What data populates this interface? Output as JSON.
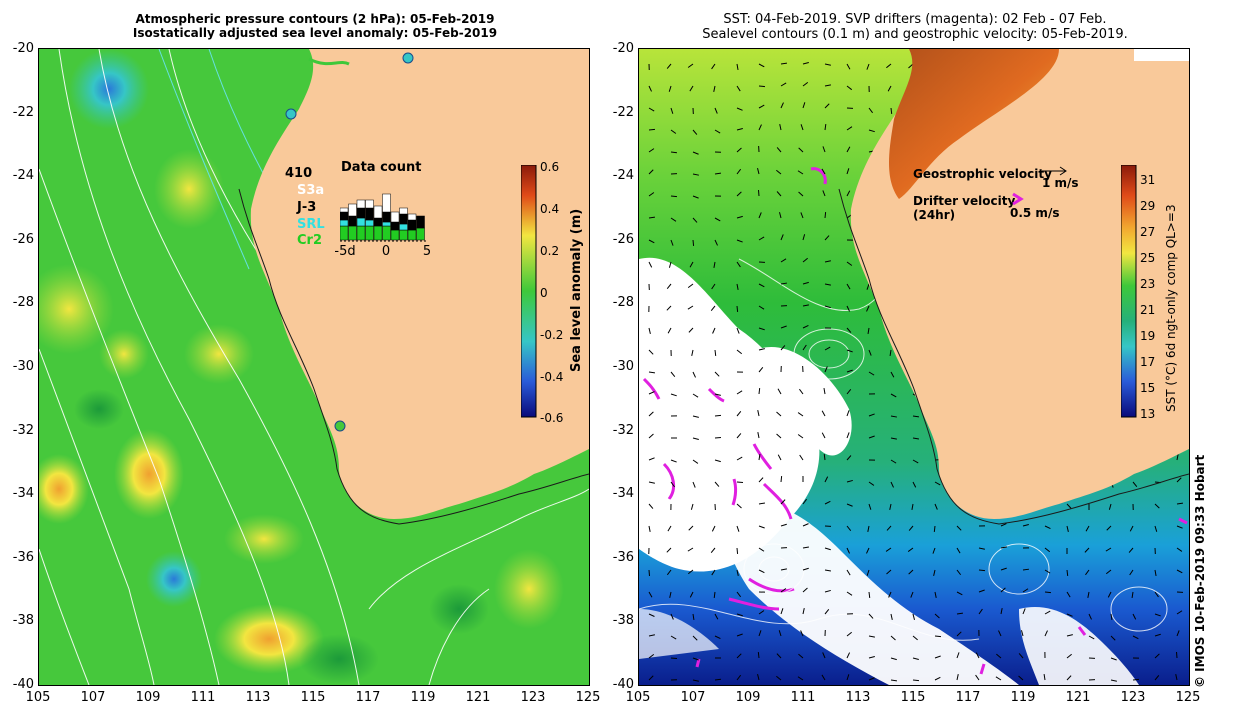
{
  "left_panel": {
    "title_line1": "Atmospheric pressure contours (2 hPa): 05-Feb-2019",
    "title_line2": "Isostatically adjusted sea level anomaly: 05-Feb-2019",
    "colorbar": {
      "label": "Sea level anomaly (m)",
      "ticks": [
        "0.6",
        "0.4",
        "0.2",
        "0",
        "-0.2",
        "-0.4",
        "-0.6"
      ]
    },
    "data_count": {
      "title": "Data count",
      "total": "410",
      "satellites": [
        {
          "name": "S3a",
          "color": "#ffffff"
        },
        {
          "name": "J-3",
          "color": "#000000"
        },
        {
          "name": "SRL",
          "color": "#33e0e0"
        },
        {
          "name": "Cr2",
          "color": "#22cc22"
        }
      ],
      "xticks": [
        "-5d",
        "0",
        "5"
      ]
    }
  },
  "right_panel": {
    "title_line1": "SST: 04-Feb-2019. SVP drifters (magenta): 02 Feb - 07 Feb.",
    "title_line2": "Sealevel contours (0.1 m) and geostrophic velocity: 05-Feb-2019.",
    "legend": {
      "geostrophic_label": "Geostrophic velocity",
      "geostrophic_scale": "1 m/s",
      "drifter_label_1": "Drifter velocity",
      "drifter_label_2": "(24hr)",
      "drifter_scale": "0.5 m/s"
    },
    "colorbar": {
      "label": "SST (°C) 6d ngt-only comp QL>=3",
      "ticks": [
        "31",
        "29",
        "27",
        "25",
        "23",
        "21",
        "19",
        "17",
        "15",
        "13"
      ]
    }
  },
  "axes": {
    "lat_ticks": [
      "-20",
      "-22",
      "-24",
      "-26",
      "-28",
      "-30",
      "-32",
      "-34",
      "-36",
      "-38",
      "-40"
    ],
    "lon_ticks": [
      "105",
      "107",
      "109",
      "111",
      "113",
      "115",
      "117",
      "119",
      "121",
      "123",
      "125"
    ]
  },
  "credit": "© IMOS 10-Feb-2019 09:33 Hobart",
  "colors": {
    "land": "#f9c99a",
    "ocean_green": "#3ec83a",
    "sst_cold": "#0a1e8c",
    "drifter": "#e020e0"
  }
}
